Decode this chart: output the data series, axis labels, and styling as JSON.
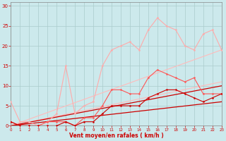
{
  "bg_color": "#cce9ec",
  "grid_color": "#aacccc",
  "xlabel": "Vent moyen/en rafales ( km/h )",
  "label_color": "#cc0000",
  "yticks": [
    0,
    5,
    10,
    15,
    20,
    25,
    30
  ],
  "xticks": [
    0,
    1,
    2,
    3,
    4,
    5,
    6,
    7,
    8,
    9,
    10,
    11,
    12,
    13,
    14,
    15,
    16,
    17,
    18,
    19,
    20,
    21,
    22,
    23
  ],
  "xlim": [
    0,
    23
  ],
  "ylim": [
    0,
    31
  ],
  "series": [
    {
      "x": [
        0,
        1,
        2,
        3,
        4,
        5,
        6,
        7,
        8,
        9,
        10,
        11,
        12,
        13,
        14,
        15,
        16,
        17,
        18,
        19,
        20,
        21,
        22,
        23
      ],
      "y": [
        6,
        1,
        1,
        0,
        1,
        3,
        15,
        3,
        5,
        6,
        15,
        19,
        20,
        21,
        19,
        24,
        27,
        25,
        24,
        20,
        19,
        23,
        24,
        19
      ],
      "color": "#ffaaaa",
      "lw": 0.8,
      "marker": "o",
      "ms": 1.5,
      "zorder": 3
    },
    {
      "x": [
        0,
        23
      ],
      "y": [
        0,
        19
      ],
      "color": "#ffbbbb",
      "lw": 0.8,
      "marker": null,
      "ms": 0,
      "zorder": 2
    },
    {
      "x": [
        0,
        23
      ],
      "y": [
        0,
        11
      ],
      "color": "#ffbbbb",
      "lw": 0.8,
      "marker": null,
      "ms": 0,
      "zorder": 2
    },
    {
      "x": [
        0,
        1,
        2,
        3,
        4,
        5,
        6,
        7,
        8,
        9,
        10,
        11,
        12,
        13,
        14,
        15,
        16,
        17,
        18,
        19,
        20,
        21,
        22,
        23
      ],
      "y": [
        1,
        0,
        0,
        0,
        1,
        1,
        1,
        0,
        2,
        2,
        5,
        9,
        9,
        8,
        8,
        12,
        14,
        13,
        12,
        11,
        12,
        8,
        8,
        8
      ],
      "color": "#ff5555",
      "lw": 0.8,
      "marker": "o",
      "ms": 1.5,
      "zorder": 3
    },
    {
      "x": [
        0,
        23
      ],
      "y": [
        0,
        10
      ],
      "color": "#cc0000",
      "lw": 0.9,
      "marker": null,
      "ms": 0,
      "zorder": 2
    },
    {
      "x": [
        0,
        23
      ],
      "y": [
        0,
        6
      ],
      "color": "#cc0000",
      "lw": 0.9,
      "marker": null,
      "ms": 0,
      "zorder": 2
    },
    {
      "x": [
        0,
        1,
        2,
        3,
        4,
        5,
        6,
        7,
        8,
        9,
        10,
        11,
        12,
        13,
        14,
        15,
        16,
        17,
        18,
        19,
        20,
        21,
        22,
        23
      ],
      "y": [
        1,
        0,
        0,
        0,
        0,
        0,
        1,
        0,
        1,
        1,
        3,
        5,
        5,
        5,
        5,
        7,
        8,
        9,
        9,
        8,
        7,
        6,
        7,
        8
      ],
      "color": "#cc0000",
      "lw": 0.8,
      "marker": "o",
      "ms": 1.5,
      "zorder": 3
    }
  ]
}
